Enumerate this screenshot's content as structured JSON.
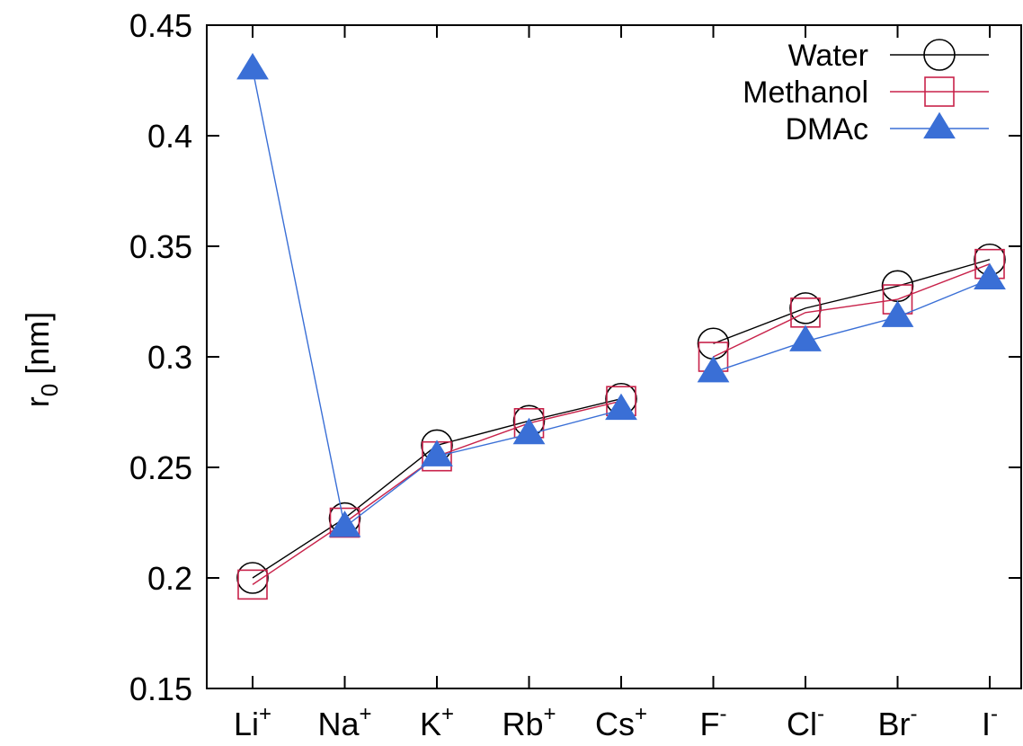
{
  "chart_data": {
    "type": "line",
    "title": "",
    "xlabel": "",
    "ylabel": "r",
    "ylabel_sub": "0",
    "ylabel_unit": " [nm]",
    "ylim": [
      0.15,
      0.45
    ],
    "yticks": [
      "0.15",
      "0.2",
      "0.25",
      "0.3",
      "0.35",
      "0.4",
      "0.45"
    ],
    "grid": false,
    "legend_position": "top-right",
    "categories": [
      {
        "base": "Li",
        "sup": "+"
      },
      {
        "base": "Na",
        "sup": "+"
      },
      {
        "base": "K",
        "sup": "+"
      },
      {
        "base": "Rb",
        "sup": "+"
      },
      {
        "base": "Cs",
        "sup": "+"
      },
      {
        "base": "F",
        "sup": "-"
      },
      {
        "base": "Cl",
        "sup": "-"
      },
      {
        "base": "Br",
        "sup": "-"
      },
      {
        "base": "I",
        "sup": "-"
      }
    ],
    "segments": [
      [
        0,
        4
      ],
      [
        5,
        8
      ]
    ],
    "series": [
      {
        "name": "Water",
        "marker": "circle",
        "color": "#000000",
        "values": [
          0.2,
          0.227,
          0.26,
          0.271,
          0.281,
          0.306,
          0.322,
          0.332,
          0.344
        ]
      },
      {
        "name": "Methanol",
        "marker": "square",
        "color": "#c8224a",
        "values": [
          0.197,
          0.225,
          0.255,
          0.27,
          0.28,
          0.3,
          0.32,
          0.326,
          0.342
        ]
      },
      {
        "name": "DMAc",
        "marker": "triangle",
        "color": "#3a6fd6",
        "values": [
          0.43,
          0.223,
          0.255,
          0.265,
          0.276,
          0.293,
          0.307,
          0.318,
          0.335
        ]
      }
    ]
  }
}
